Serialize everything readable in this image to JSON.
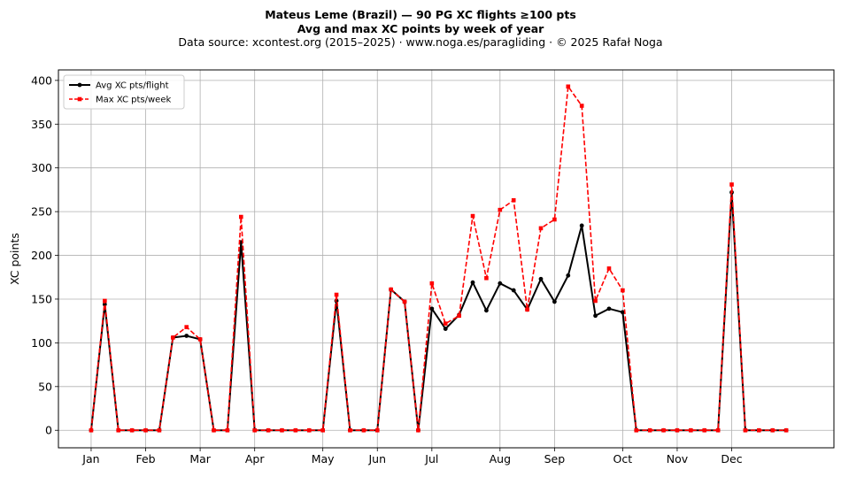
{
  "title": "Mateus Leme (Brazil)  —  90 PG XC flights ≥100 pts",
  "subtitle": "Avg and max XC points by week of year",
  "source": "Data source: xcontest.org (2015–2025)  ·  www.noga.es/paragliding  ·  © 2025 Rafał Noga",
  "chart_data": {
    "type": "line",
    "xlabel": "",
    "ylabel": "XC points",
    "xlim": [
      -2.4,
      54.5
    ],
    "ylim": [
      -20,
      412
    ],
    "grid": true,
    "legend_position": "top-left",
    "x_ticks": [
      {
        "label": "Jan",
        "week": 0
      },
      {
        "label": "Feb",
        "week": 4
      },
      {
        "label": "Mar",
        "week": 8
      },
      {
        "label": "Apr",
        "week": 12
      },
      {
        "label": "May",
        "week": 17
      },
      {
        "label": "Jun",
        "week": 21
      },
      {
        "label": "Jul",
        "week": 25
      },
      {
        "label": "Aug",
        "week": 30
      },
      {
        "label": "Sep",
        "week": 34
      },
      {
        "label": "Oct",
        "week": 39
      },
      {
        "label": "Nov",
        "week": 43
      },
      {
        "label": "Dec",
        "week": 47
      }
    ],
    "y_ticks": [
      0,
      50,
      100,
      150,
      200,
      250,
      300,
      350,
      400
    ],
    "x": [
      0,
      1,
      2,
      3,
      4,
      5,
      6,
      7,
      8,
      9,
      10,
      11,
      12,
      13,
      14,
      15,
      16,
      17,
      18,
      19,
      20,
      21,
      22,
      23,
      24,
      25,
      26,
      27,
      28,
      29,
      30,
      31,
      32,
      33,
      34,
      35,
      36,
      37,
      38,
      39,
      40,
      41,
      42,
      43,
      44,
      45,
      46,
      47,
      48,
      49,
      50,
      51
    ],
    "series": [
      {
        "name": "Avg XC pts/flight",
        "color": "#000000",
        "style": "solid-circle",
        "values": [
          0,
          144,
          0,
          0,
          0,
          0,
          106,
          108,
          104,
          0,
          0,
          215,
          0,
          0,
          0,
          0,
          0,
          0,
          148,
          0,
          0,
          0,
          161,
          147,
          0,
          139,
          116,
          132,
          169,
          137,
          168,
          160,
          138,
          173,
          147,
          177,
          234,
          131,
          139,
          135,
          0,
          0,
          0,
          0,
          0,
          0,
          0,
          272,
          0,
          0,
          0,
          0
        ]
      },
      {
        "name": "Max XC pts/week",
        "color": "#ff0000",
        "style": "dashed-square",
        "values": [
          0,
          148,
          0,
          0,
          0,
          0,
          106,
          118,
          104,
          0,
          0,
          244,
          0,
          0,
          0,
          0,
          0,
          0,
          155,
          0,
          0,
          0,
          161,
          147,
          0,
          168,
          122,
          131,
          245,
          174,
          252,
          263,
          138,
          231,
          241,
          393,
          371,
          148,
          185,
          160,
          0,
          0,
          0,
          0,
          0,
          0,
          0,
          281,
          0,
          0,
          0,
          0
        ]
      }
    ]
  }
}
